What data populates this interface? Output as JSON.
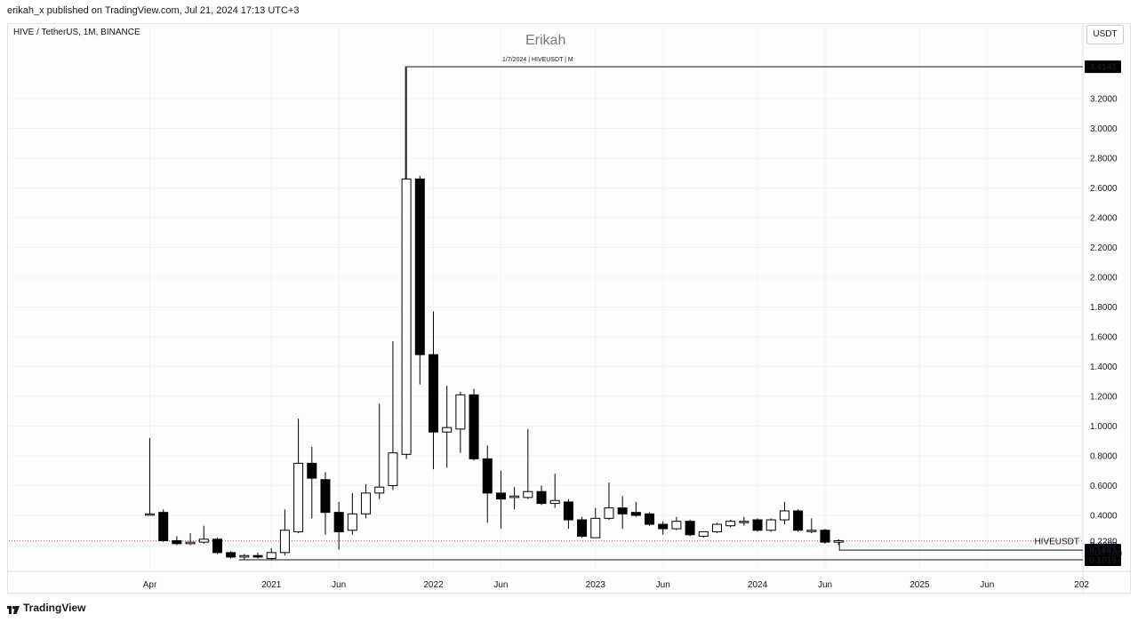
{
  "header": {
    "published": "erikah_x published on TradingView.com, Jul 21, 2024 17:13 UTC+3"
  },
  "chart_info": {
    "symbol": "HIVE / TetherUS, 1M, BINANCE",
    "author": "Erikah",
    "note": "1/7/2024 | HIVEUSDT | M",
    "currency": "USDT",
    "brand": "TradingView"
  },
  "chart_data": {
    "type": "candlestick",
    "symbol": "HIVEUSDT",
    "interval": "1M",
    "ylim": [
      0.0,
      3.6
    ],
    "y_ticks": [
      0.2,
      0.4,
      0.6,
      0.8,
      1.0,
      1.2,
      1.4,
      1.6,
      1.8,
      2.0,
      2.2,
      2.4,
      2.6,
      2.8,
      3.0,
      3.2
    ],
    "y_tick_labels": [
      "0.2000",
      "0.4000",
      "0.6000",
      "0.8000",
      "1.0000",
      "1.2000",
      "1.4000",
      "1.6000",
      "1.8000",
      "2.0000",
      "2.2000",
      "2.4000",
      "2.6000",
      "2.8000",
      "3.0000",
      "3.2000"
    ],
    "x_ticks": [
      "Apr",
      "2021",
      "Jun",
      "2022",
      "Jun",
      "2023",
      "Jun",
      "2024",
      "Jun",
      "2025",
      "Jun",
      "202"
    ],
    "x_tick_months": [
      "2020-04",
      "2021-01",
      "2021-06",
      "2022-01",
      "2022-06",
      "2023-01",
      "2023-06",
      "2024-01",
      "2024-06",
      "2025-01",
      "2025-06",
      "2026-01"
    ],
    "candles": [
      {
        "date": "2020-04",
        "open": 0.41,
        "high": 0.92,
        "low": 0.4,
        "close": 0.41
      },
      {
        "date": "2020-05",
        "open": 0.42,
        "high": 0.44,
        "low": 0.22,
        "close": 0.23
      },
      {
        "date": "2020-06",
        "open": 0.23,
        "high": 0.26,
        "low": 0.2,
        "close": 0.21
      },
      {
        "date": "2020-07",
        "open": 0.21,
        "high": 0.28,
        "low": 0.2,
        "close": 0.22
      },
      {
        "date": "2020-08",
        "open": 0.22,
        "high": 0.33,
        "low": 0.21,
        "close": 0.24
      },
      {
        "date": "2020-09",
        "open": 0.24,
        "high": 0.25,
        "low": 0.14,
        "close": 0.15
      },
      {
        "date": "2020-10",
        "open": 0.15,
        "high": 0.16,
        "low": 0.11,
        "close": 0.12
      },
      {
        "date": "2020-11",
        "open": 0.12,
        "high": 0.14,
        "low": 0.1,
        "close": 0.13
      },
      {
        "date": "2020-12",
        "open": 0.13,
        "high": 0.15,
        "low": 0.11,
        "close": 0.12
      },
      {
        "date": "2021-01",
        "open": 0.11,
        "high": 0.18,
        "low": 0.1,
        "close": 0.15
      },
      {
        "date": "2021-02",
        "open": 0.15,
        "high": 0.44,
        "low": 0.13,
        "close": 0.3
      },
      {
        "date": "2021-03",
        "open": 0.29,
        "high": 1.05,
        "low": 0.28,
        "close": 0.75
      },
      {
        "date": "2021-04",
        "open": 0.75,
        "high": 0.86,
        "low": 0.38,
        "close": 0.65
      },
      {
        "date": "2021-05",
        "open": 0.64,
        "high": 0.69,
        "low": 0.27,
        "close": 0.42
      },
      {
        "date": "2021-06",
        "open": 0.42,
        "high": 0.49,
        "low": 0.17,
        "close": 0.29
      },
      {
        "date": "2021-07",
        "open": 0.3,
        "high": 0.55,
        "low": 0.27,
        "close": 0.41
      },
      {
        "date": "2021-08",
        "open": 0.41,
        "high": 0.61,
        "low": 0.38,
        "close": 0.55
      },
      {
        "date": "2021-09",
        "open": 0.55,
        "high": 1.15,
        "low": 0.51,
        "close": 0.59
      },
      {
        "date": "2021-10",
        "open": 0.6,
        "high": 1.57,
        "low": 0.57,
        "close": 0.82
      },
      {
        "date": "2021-11",
        "open": 0.81,
        "high": 3.41,
        "low": 0.78,
        "close": 2.66
      },
      {
        "date": "2021-12",
        "open": 2.66,
        "high": 2.68,
        "low": 1.28,
        "close": 1.48
      },
      {
        "date": "2022-01",
        "open": 1.48,
        "high": 1.77,
        "low": 0.71,
        "close": 0.96
      },
      {
        "date": "2022-02",
        "open": 0.96,
        "high": 1.27,
        "low": 0.72,
        "close": 0.99
      },
      {
        "date": "2022-03",
        "open": 0.98,
        "high": 1.23,
        "low": 0.82,
        "close": 1.21
      },
      {
        "date": "2022-04",
        "open": 1.21,
        "high": 1.25,
        "low": 0.77,
        "close": 0.78
      },
      {
        "date": "2022-05",
        "open": 0.78,
        "high": 0.87,
        "low": 0.35,
        "close": 0.55
      },
      {
        "date": "2022-06",
        "open": 0.55,
        "high": 0.7,
        "low": 0.31,
        "close": 0.51
      },
      {
        "date": "2022-07",
        "open": 0.52,
        "high": 0.59,
        "low": 0.44,
        "close": 0.53
      },
      {
        "date": "2022-08",
        "open": 0.52,
        "high": 0.98,
        "low": 0.51,
        "close": 0.56
      },
      {
        "date": "2022-09",
        "open": 0.56,
        "high": 0.6,
        "low": 0.47,
        "close": 0.48
      },
      {
        "date": "2022-10",
        "open": 0.48,
        "high": 0.68,
        "low": 0.45,
        "close": 0.5
      },
      {
        "date": "2022-11",
        "open": 0.49,
        "high": 0.51,
        "low": 0.31,
        "close": 0.37
      },
      {
        "date": "2022-12",
        "open": 0.37,
        "high": 0.39,
        "low": 0.25,
        "close": 0.26
      },
      {
        "date": "2023-01",
        "open": 0.25,
        "high": 0.45,
        "low": 0.25,
        "close": 0.38
      },
      {
        "date": "2023-02",
        "open": 0.38,
        "high": 0.62,
        "low": 0.37,
        "close": 0.45
      },
      {
        "date": "2023-03",
        "open": 0.45,
        "high": 0.53,
        "low": 0.31,
        "close": 0.41
      },
      {
        "date": "2023-04",
        "open": 0.42,
        "high": 0.49,
        "low": 0.39,
        "close": 0.4
      },
      {
        "date": "2023-05",
        "open": 0.41,
        "high": 0.42,
        "low": 0.33,
        "close": 0.34
      },
      {
        "date": "2023-06",
        "open": 0.34,
        "high": 0.36,
        "low": 0.27,
        "close": 0.31
      },
      {
        "date": "2023-07",
        "open": 0.31,
        "high": 0.39,
        "low": 0.3,
        "close": 0.36
      },
      {
        "date": "2023-08",
        "open": 0.36,
        "high": 0.37,
        "low": 0.26,
        "close": 0.27
      },
      {
        "date": "2023-09",
        "open": 0.26,
        "high": 0.29,
        "low": 0.25,
        "close": 0.29
      },
      {
        "date": "2023-10",
        "open": 0.29,
        "high": 0.35,
        "low": 0.28,
        "close": 0.34
      },
      {
        "date": "2023-11",
        "open": 0.33,
        "high": 0.37,
        "low": 0.32,
        "close": 0.36
      },
      {
        "date": "2023-12",
        "open": 0.36,
        "high": 0.39,
        "low": 0.33,
        "close": 0.36
      },
      {
        "date": "2024-01",
        "open": 0.37,
        "high": 0.38,
        "low": 0.29,
        "close": 0.3
      },
      {
        "date": "2024-02",
        "open": 0.3,
        "high": 0.38,
        "low": 0.29,
        "close": 0.37
      },
      {
        "date": "2024-03",
        "open": 0.37,
        "high": 0.49,
        "low": 0.34,
        "close": 0.43
      },
      {
        "date": "2024-04",
        "open": 0.43,
        "high": 0.44,
        "low": 0.29,
        "close": 0.3
      },
      {
        "date": "2024-05",
        "open": 0.3,
        "high": 0.38,
        "low": 0.28,
        "close": 0.3
      },
      {
        "date": "2024-06",
        "open": 0.3,
        "high": 0.31,
        "low": 0.21,
        "close": 0.22
      },
      {
        "date": "2024-07",
        "open": 0.22,
        "high": 0.24,
        "low": 0.2,
        "close": 0.23
      }
    ],
    "annotations": {
      "high_line": {
        "value": 3.4141,
        "label": "3.4141",
        "from_date": "2021-11"
      },
      "low_line": {
        "value": 0.1015,
        "label": "0.1015",
        "from_date": "2020-11"
      },
      "current_price": {
        "value": 0.228,
        "label": "0.2280",
        "symbol": "HIVEUSDT",
        "countdown": "10d 10h"
      },
      "target_line": {
        "value": 0.1663,
        "label": "0.1663",
        "from_date": "2024-07"
      }
    },
    "colors": {
      "up_fill": "#ffffff",
      "down_fill": "#000000",
      "candle_border": "#000000",
      "price_line": "#f23645",
      "axis_text": "#131722"
    }
  }
}
